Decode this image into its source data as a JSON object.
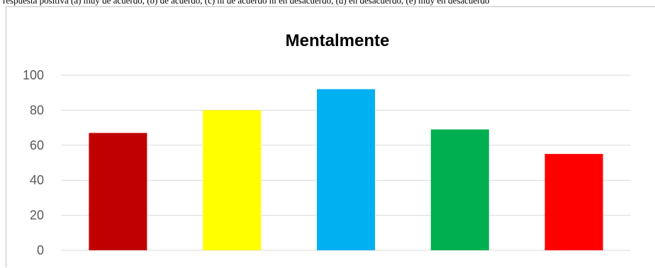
{
  "header_fragment": "respuesta positiva (a) muy de acuerdo, (b) de acuerdo, (c) ni de acuerdo ni en desacuerdo, (d) en desacuerdo, (e) muy en desacuerdo",
  "chart_data": {
    "type": "bar",
    "title": "Mentalmente",
    "categories": [
      "",
      "",
      "",
      "",
      ""
    ],
    "values": [
      67,
      80,
      92,
      69,
      55
    ],
    "colors": [
      "#c00000",
      "#ffff00",
      "#00b0f0",
      "#00b050",
      "#ff0000"
    ],
    "ylim": [
      0,
      100
    ],
    "yticks": [
      0,
      20,
      40,
      60,
      80,
      100
    ],
    "grid": true,
    "legend": "none"
  }
}
